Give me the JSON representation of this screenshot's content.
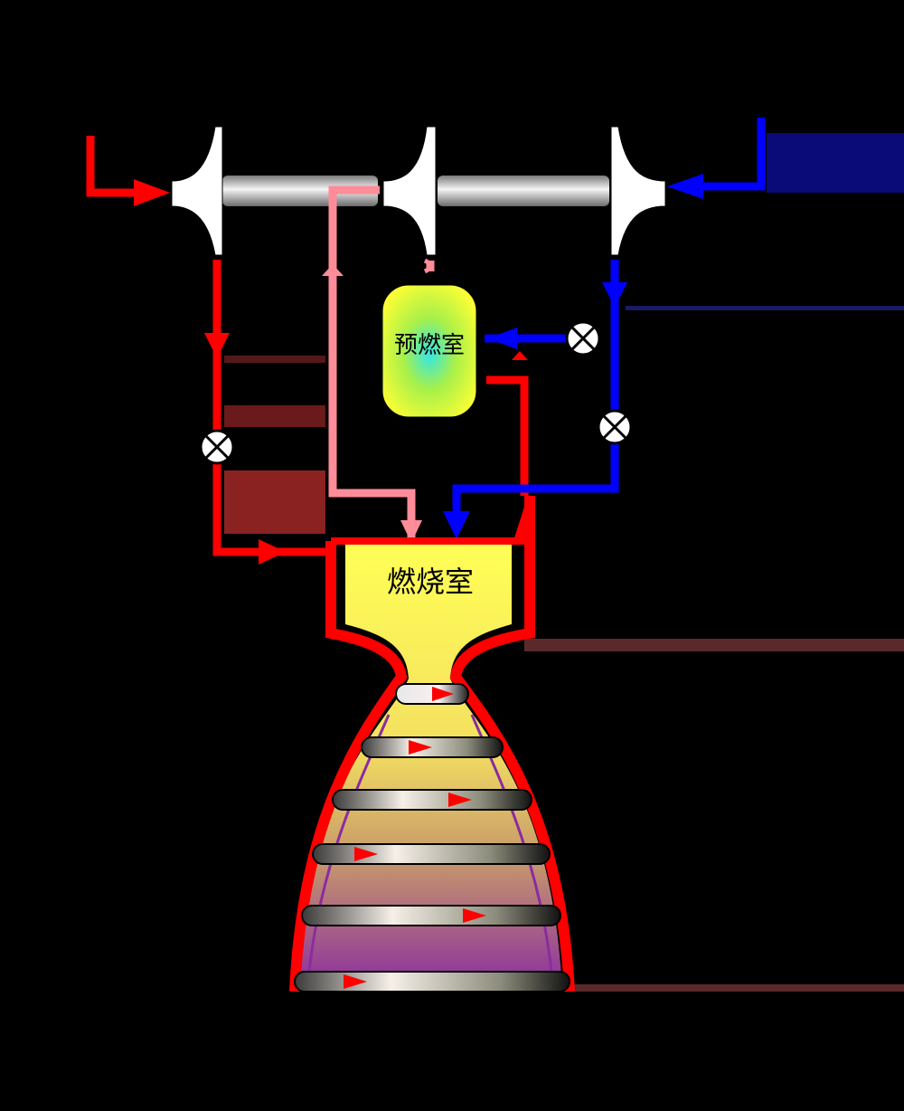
{
  "labels": {
    "preburner": "预燃室",
    "combustion_chamber": "燃烧室"
  },
  "colors": {
    "background": "#000000",
    "fuel_line": "#ff0000",
    "oxidizer_line": "#0000ff",
    "hot_gas_line": "#ff8c99",
    "shaft": "#c8c8c8",
    "chamber_fill": "#ffff44",
    "valve_fill": "#ffffff"
  },
  "icons": {
    "valve": "valve-icon",
    "turbopump_rotor": "rotor-icon",
    "flow_arrow": "arrow-icon"
  }
}
